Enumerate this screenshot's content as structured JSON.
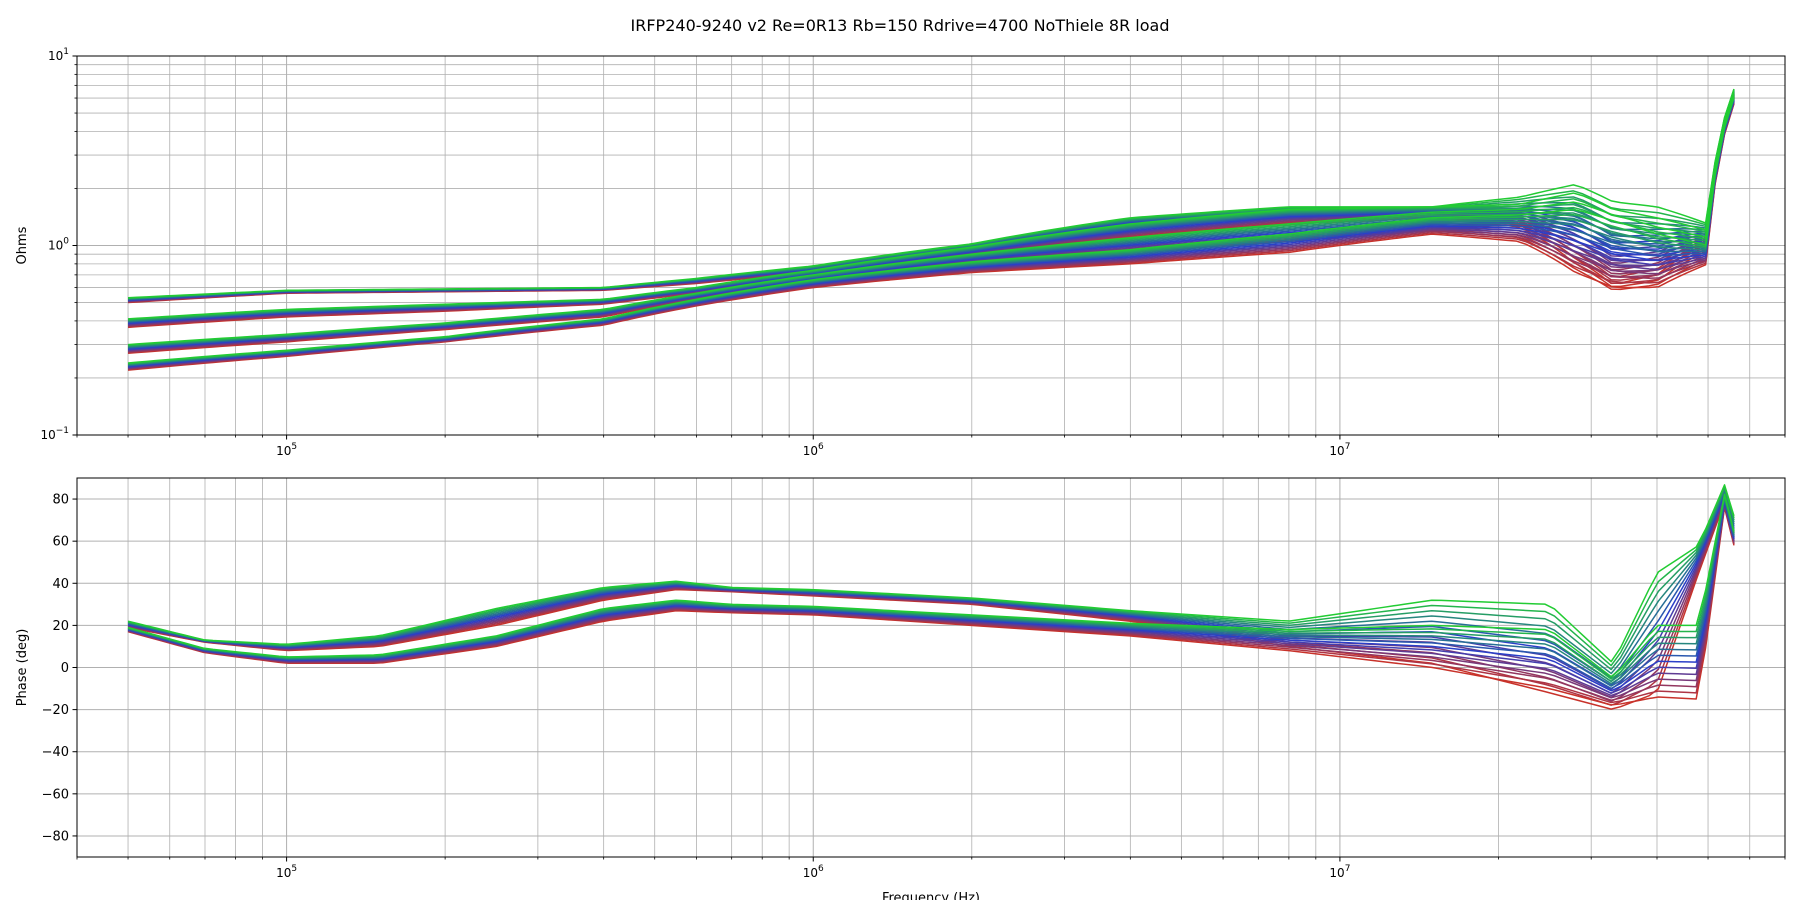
{
  "chart_data": {
    "title": "IRFP240-9240 v2 Re=0R13 Rb=150 Rdrive=4700 NoThiele 8R load",
    "type": "line",
    "x_scale": "log",
    "xlabel": "Frequency (Hz)",
    "grid": true,
    "colormap": [
      "#c8322a",
      "#2a3fc8",
      "#22cc33"
    ],
    "panels": [
      {
        "id": "impedance",
        "ylabel": "Ohms",
        "y_scale": "log",
        "xlim": [
          40000,
          70000000
        ],
        "ylim": [
          0.1,
          10
        ],
        "y_ticks": [
          {
            "value": 0.1,
            "base": "10",
            "exp": "−1"
          },
          {
            "value": 1,
            "base": "10",
            "exp": "0"
          },
          {
            "value": 10,
            "base": "10",
            "exp": "1"
          }
        ],
        "x_ticks": [
          {
            "value": 100000,
            "base": "10",
            "exp": "5"
          },
          {
            "value": 1000000,
            "base": "10",
            "exp": "6"
          },
          {
            "value": 10000000,
            "base": "10",
            "exp": "7"
          }
        ],
        "curve_groups": [
          {
            "x": [
              50000,
              100000,
              200000,
              400000,
              600000,
              1000000,
              2000000,
              4000000,
              8000000,
              15000000,
              22000000,
              28000000,
              33000000,
              40000000,
              50000000,
              56000000
            ],
            "low": [
              0.5,
              0.56,
              0.57,
              0.58,
              0.63,
              0.72,
              0.95,
              1.25,
              1.4,
              1.45,
              1.3,
              0.85,
              0.62,
              0.7,
              1.05,
              6.2
            ],
            "high": [
              0.53,
              0.58,
              0.59,
              0.6,
              0.67,
              0.78,
              1.02,
              1.4,
              1.6,
              1.6,
              1.8,
              2.1,
              1.7,
              1.6,
              1.3,
              6.7
            ]
          },
          {
            "x": [
              50000,
              100000,
              200000,
              400000,
              600000,
              1000000,
              2000000,
              4000000,
              8000000,
              15000000,
              22000000,
              28000000,
              33000000,
              40000000,
              50000000,
              56000000
            ],
            "low": [
              0.37,
              0.42,
              0.45,
              0.49,
              0.56,
              0.68,
              0.88,
              1.1,
              1.3,
              1.4,
              1.25,
              0.8,
              0.6,
              0.65,
              0.95,
              6.0
            ],
            "high": [
              0.41,
              0.46,
              0.49,
              0.52,
              0.6,
              0.74,
              0.98,
              1.3,
              1.55,
              1.6,
              1.65,
              1.9,
              1.55,
              1.4,
              1.2,
              6.5
            ]
          },
          {
            "x": [
              50000,
              100000,
              200000,
              400000,
              600000,
              1000000,
              2000000,
              4000000,
              8000000,
              15000000,
              22000000,
              28000000,
              33000000,
              40000000,
              50000000,
              56000000
            ],
            "low": [
              0.27,
              0.31,
              0.36,
              0.42,
              0.52,
              0.64,
              0.8,
              0.92,
              1.05,
              1.2,
              1.1,
              0.75,
              0.58,
              0.62,
              0.85,
              5.8
            ],
            "high": [
              0.3,
              0.34,
              0.39,
              0.46,
              0.56,
              0.7,
              0.9,
              1.1,
              1.3,
              1.5,
              1.55,
              1.7,
              1.45,
              1.25,
              1.1,
              6.3
            ]
          },
          {
            "x": [
              50000,
              100000,
              200000,
              400000,
              600000,
              1000000,
              2000000,
              4000000,
              8000000,
              15000000,
              22000000,
              28000000,
              33000000,
              40000000,
              50000000,
              56000000
            ],
            "low": [
              0.22,
              0.26,
              0.31,
              0.38,
              0.48,
              0.6,
              0.72,
              0.8,
              0.92,
              1.15,
              1.05,
              0.72,
              0.6,
              0.6,
              0.8,
              5.6
            ],
            "high": [
              0.24,
              0.28,
              0.33,
              0.41,
              0.52,
              0.66,
              0.82,
              0.95,
              1.15,
              1.4,
              1.45,
              1.55,
              1.35,
              1.15,
              1.0,
              6.1
            ]
          }
        ]
      },
      {
        "id": "phase",
        "ylabel": "Phase (deg)",
        "y_scale": "linear",
        "xlim": [
          40000,
          70000000
        ],
        "ylim": [
          -90,
          90
        ],
        "y_ticks": [
          {
            "value": 80,
            "label": "80"
          },
          {
            "value": 60,
            "label": "60"
          },
          {
            "value": 40,
            "label": "40"
          },
          {
            "value": 20,
            "label": "20"
          },
          {
            "value": 0,
            "label": "0"
          },
          {
            "value": -20,
            "label": "−20"
          },
          {
            "value": -40,
            "label": "−40"
          },
          {
            "value": -60,
            "label": "−60"
          },
          {
            "value": -80,
            "label": "−80"
          }
        ],
        "x_ticks": [
          {
            "value": 100000,
            "base": "10",
            "exp": "5"
          },
          {
            "value": 1000000,
            "base": "10",
            "exp": "6"
          },
          {
            "value": 10000000,
            "base": "10",
            "exp": "7"
          }
        ],
        "curve_groups": [
          {
            "x": [
              50000,
              70000,
              100000,
              150000,
              250000,
              400000,
              550000,
              700000,
              1000000,
              2000000,
              4000000,
              8000000,
              15000000,
              25000000,
              33000000,
              40000000,
              48000000,
              54000000,
              56000000
            ],
            "low": [
              19,
              12,
              8,
              10,
              20,
              32,
              37,
              36,
              34,
              30,
              22,
              10,
              2,
              -12,
              -20,
              -12,
              45,
              80,
              60
            ],
            "high": [
              22,
              13,
              11,
              15,
              28,
              38,
              41,
              38,
              37,
              33,
              27,
              22,
              32,
              30,
              2,
              45,
              58,
              88,
              72
            ]
          },
          {
            "x": [
              50000,
              70000,
              100000,
              150000,
              250000,
              400000,
              550000,
              700000,
              1000000,
              2000000,
              4000000,
              8000000,
              15000000,
              25000000,
              33000000,
              40000000,
              48000000,
              54000000,
              56000000
            ],
            "low": [
              17,
              7,
              2,
              2,
              10,
              22,
              27,
              26,
              25,
              20,
              15,
              8,
              0,
              -10,
              -18,
              -14,
              -15,
              80,
              58
            ],
            "high": [
              19,
              9,
              5,
              6,
              15,
              28,
              32,
              30,
              29,
              25,
              21,
              18,
              20,
              18,
              -5,
              20,
              20,
              85,
              65
            ]
          }
        ]
      }
    ]
  }
}
